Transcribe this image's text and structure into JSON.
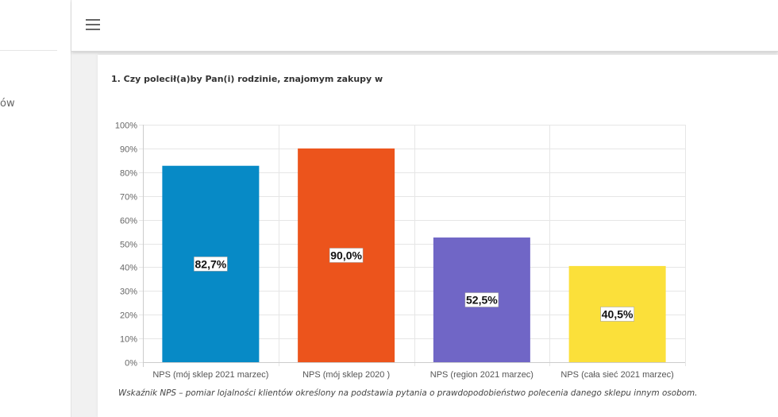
{
  "sidebar": {
    "partial_item": "ów"
  },
  "header": {
    "menu_icon": "hamburger-icon"
  },
  "card": {
    "title": "1. Czy polecił(a)by Pan(i) rodzinie, znajomym zakupy w",
    "note": "Wskaźnik NPS – pomiar lojalności klientów określony na podstawia pytania o prawdopodobieństwo polecenia danego sklepu innym osobom."
  },
  "chart_data": {
    "type": "bar",
    "title": "1. Czy polecił(a)by Pan(i) rodzinie, znajomym zakupy w",
    "xlabel": "",
    "ylabel": "",
    "categories": [
      "NPS (mój sklep 2021 marzec)",
      "NPS (mój sklep 2020 )",
      "NPS (region 2021 marzec)",
      "NPS (cała sieć 2021 marzec)"
    ],
    "values": [
      82.7,
      90.0,
      52.5,
      40.5
    ],
    "data_labels": [
      "82,7%",
      "90,0%",
      "52,5%",
      "40,5%"
    ],
    "colors": [
      "#078ac6",
      "#ec541c",
      "#7066c6",
      "#fbe03a"
    ],
    "ylim": [
      0,
      100
    ],
    "yticks": [
      0,
      10,
      20,
      30,
      40,
      50,
      60,
      70,
      80,
      90,
      100
    ],
    "ytick_labels": [
      "0%",
      "10%",
      "20%",
      "30%",
      "40%",
      "50%",
      "60%",
      "70%",
      "80%",
      "90%",
      "100%"
    ],
    "grid": true,
    "legend": "none"
  }
}
